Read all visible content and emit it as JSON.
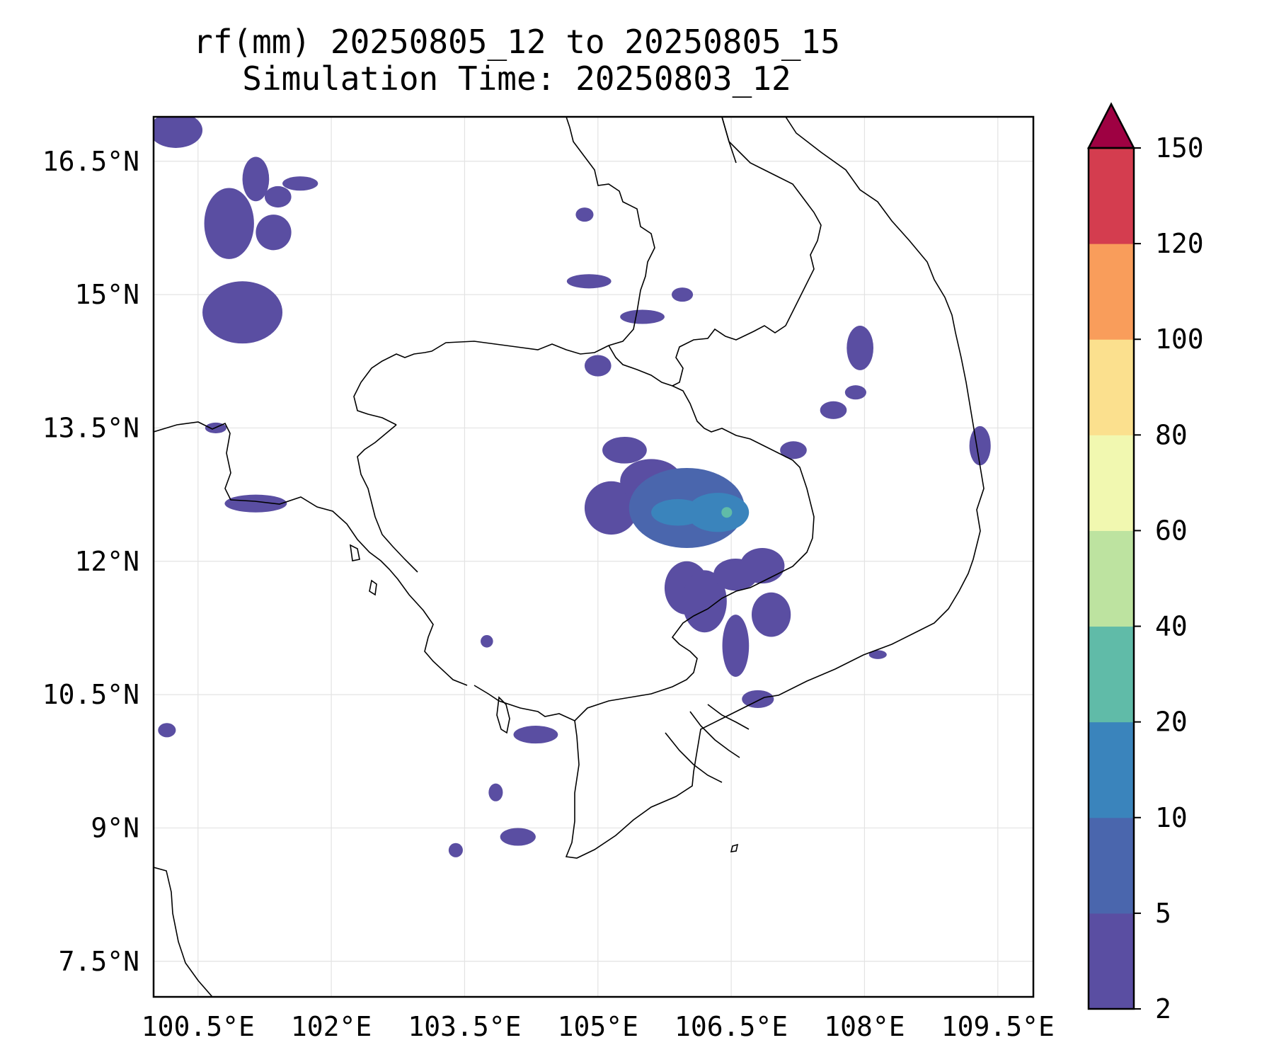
{
  "title": {
    "line1": "rf(mm) 20250805_12 to 20250805_15",
    "line2": "Simulation Time: 20250803_12"
  },
  "map": {
    "lon_range": [
      100.0,
      109.9
    ],
    "lat_range": [
      7.1,
      17.0
    ],
    "x_ticks": [
      {
        "value": 100.5,
        "label": "100.5°E"
      },
      {
        "value": 102.0,
        "label": "102°E"
      },
      {
        "value": 103.5,
        "label": "103.5°E"
      },
      {
        "value": 105.0,
        "label": "105°E"
      },
      {
        "value": 106.5,
        "label": "106.5°E"
      },
      {
        "value": 108.0,
        "label": "108°E"
      },
      {
        "value": 109.5,
        "label": "109.5°E"
      }
    ],
    "y_ticks": [
      {
        "value": 16.5,
        "label": "16.5°N"
      },
      {
        "value": 15.0,
        "label": "15°N"
      },
      {
        "value": 13.5,
        "label": "13.5°N"
      },
      {
        "value": 12.0,
        "label": "12°N"
      },
      {
        "value": 10.5,
        "label": "10.5°N"
      },
      {
        "value": 9.0,
        "label": "9°N"
      },
      {
        "value": 7.5,
        "label": "7.5°N"
      }
    ],
    "grid": true
  },
  "colorbar": {
    "levels": [
      {
        "value": 2,
        "label": "2",
        "color": "#5a4ea2"
      },
      {
        "value": 5,
        "label": "5",
        "color": "#4a66ad"
      },
      {
        "value": 10,
        "label": "10",
        "color": "#3a84bc"
      },
      {
        "value": 20,
        "label": "20",
        "color": "#60bba8"
      },
      {
        "value": 40,
        "label": "40",
        "color": "#bde3a0"
      },
      {
        "value": 60,
        "label": "60",
        "color": "#f1f8b0"
      },
      {
        "value": 80,
        "label": "80",
        "color": "#fbe08e"
      },
      {
        "value": 100,
        "label": "100",
        "color": "#f99d5b"
      },
      {
        "value": 120,
        "label": "120",
        "color": "#d43d4f"
      },
      {
        "value": 150,
        "label": "150",
        "color": "#9e0142"
      }
    ],
    "extend": "max"
  },
  "chart_data": {
    "type": "filled-contour map",
    "variable": "rf(mm)",
    "levels": [
      2,
      5,
      10,
      20,
      40,
      60,
      80,
      100,
      120,
      150
    ],
    "x_range": [
      100.0,
      109.9
    ],
    "y_range": [
      7.1,
      17.0
    ],
    "rain_cells": [
      {
        "lon": 106.0,
        "lat": 12.6,
        "rx": 0.65,
        "ry": 0.45,
        "level": 5
      },
      {
        "lon": 106.35,
        "lat": 12.55,
        "rx": 0.35,
        "ry": 0.22,
        "level": 10
      },
      {
        "lon": 105.9,
        "lat": 12.55,
        "rx": 0.3,
        "ry": 0.15,
        "level": 10
      },
      {
        "lon": 106.45,
        "lat": 12.55,
        "rx": 0.06,
        "ry": 0.06,
        "level": 20
      },
      {
        "lon": 105.15,
        "lat": 12.6,
        "rx": 0.3,
        "ry": 0.3,
        "level": 2
      },
      {
        "lon": 105.6,
        "lat": 12.9,
        "rx": 0.35,
        "ry": 0.25,
        "level": 2
      },
      {
        "lon": 105.3,
        "lat": 13.25,
        "rx": 0.25,
        "ry": 0.15,
        "level": 2
      },
      {
        "lon": 106.0,
        "lat": 11.7,
        "rx": 0.25,
        "ry": 0.3,
        "level": 2
      },
      {
        "lon": 106.2,
        "lat": 11.55,
        "rx": 0.25,
        "ry": 0.35,
        "level": 2
      },
      {
        "lon": 106.55,
        "lat": 11.85,
        "rx": 0.25,
        "ry": 0.18,
        "level": 2
      },
      {
        "lon": 106.85,
        "lat": 11.95,
        "rx": 0.25,
        "ry": 0.2,
        "level": 2
      },
      {
        "lon": 106.95,
        "lat": 11.4,
        "rx": 0.22,
        "ry": 0.25,
        "level": 2
      },
      {
        "lon": 106.55,
        "lat": 11.05,
        "rx": 0.15,
        "ry": 0.35,
        "level": 2
      },
      {
        "lon": 106.8,
        "lat": 10.45,
        "rx": 0.18,
        "ry": 0.1,
        "level": 2
      },
      {
        "lon": 101.0,
        "lat": 14.8,
        "rx": 0.45,
        "ry": 0.35,
        "level": 2
      },
      {
        "lon": 100.85,
        "lat": 15.8,
        "rx": 0.28,
        "ry": 0.4,
        "level": 2
      },
      {
        "lon": 101.15,
        "lat": 16.3,
        "rx": 0.15,
        "ry": 0.25,
        "level": 2
      },
      {
        "lon": 101.35,
        "lat": 15.7,
        "rx": 0.2,
        "ry": 0.2,
        "level": 2
      },
      {
        "lon": 101.4,
        "lat": 16.1,
        "rx": 0.15,
        "ry": 0.12,
        "level": 2
      },
      {
        "lon": 101.65,
        "lat": 16.25,
        "rx": 0.2,
        "ry": 0.08,
        "level": 2
      },
      {
        "lon": 100.25,
        "lat": 16.85,
        "rx": 0.3,
        "ry": 0.2,
        "level": 2
      },
      {
        "lon": 101.15,
        "lat": 12.65,
        "rx": 0.35,
        "ry": 0.1,
        "level": 2
      },
      {
        "lon": 100.7,
        "lat": 13.5,
        "rx": 0.12,
        "ry": 0.06,
        "level": 2
      },
      {
        "lon": 104.9,
        "lat": 15.15,
        "rx": 0.25,
        "ry": 0.08,
        "level": 2
      },
      {
        "lon": 104.85,
        "lat": 15.9,
        "rx": 0.1,
        "ry": 0.08,
        "level": 2
      },
      {
        "lon": 105.5,
        "lat": 14.75,
        "rx": 0.25,
        "ry": 0.08,
        "level": 2
      },
      {
        "lon": 105.95,
        "lat": 15.0,
        "rx": 0.12,
        "ry": 0.08,
        "level": 2
      },
      {
        "lon": 105.0,
        "lat": 14.2,
        "rx": 0.15,
        "ry": 0.12,
        "level": 2
      },
      {
        "lon": 107.95,
        "lat": 14.4,
        "rx": 0.15,
        "ry": 0.25,
        "level": 2
      },
      {
        "lon": 109.3,
        "lat": 13.3,
        "rx": 0.12,
        "ry": 0.22,
        "level": 2
      },
      {
        "lon": 107.65,
        "lat": 13.7,
        "rx": 0.15,
        "ry": 0.1,
        "level": 2
      },
      {
        "lon": 107.2,
        "lat": 13.25,
        "rx": 0.15,
        "ry": 0.1,
        "level": 2
      },
      {
        "lon": 107.9,
        "lat": 13.9,
        "rx": 0.12,
        "ry": 0.08,
        "level": 2
      },
      {
        "lon": 104.3,
        "lat": 10.05,
        "rx": 0.25,
        "ry": 0.1,
        "level": 2
      },
      {
        "lon": 103.4,
        "lat": 8.75,
        "rx": 0.08,
        "ry": 0.08,
        "level": 2
      },
      {
        "lon": 104.1,
        "lat": 8.9,
        "rx": 0.2,
        "ry": 0.1,
        "level": 2
      },
      {
        "lon": 103.85,
        "lat": 9.4,
        "rx": 0.08,
        "ry": 0.1,
        "level": 2
      },
      {
        "lon": 108.15,
        "lat": 10.95,
        "rx": 0.1,
        "ry": 0.05,
        "level": 2
      },
      {
        "lon": 100.15,
        "lat": 10.1,
        "rx": 0.1,
        "ry": 0.08,
        "level": 2
      },
      {
        "lon": 103.75,
        "lat": 11.1,
        "rx": 0.07,
        "ry": 0.07,
        "level": 2
      }
    ]
  }
}
